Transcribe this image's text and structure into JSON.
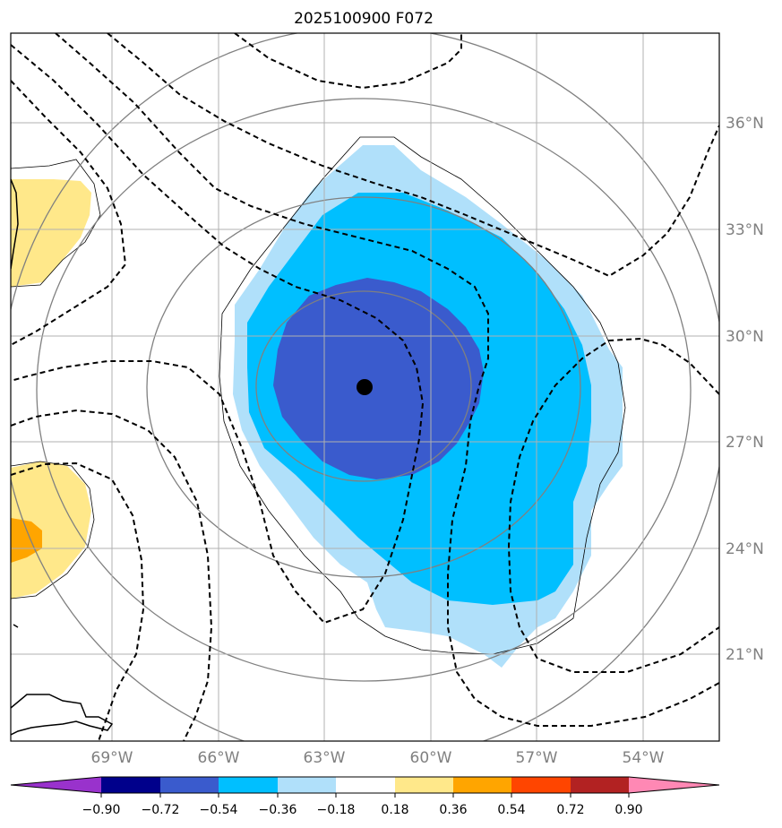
{
  "title": "2025100900 F072",
  "longitude_labels": [
    "69°W",
    "66°W",
    "63°W",
    "60°W",
    "57°W",
    "54°W"
  ],
  "latitude_labels": [
    "36°N",
    "33°N",
    "30°N",
    "27°N",
    "24°N",
    "21°N"
  ],
  "colorbar": {
    "labels": [
      "−0.90",
      "−0.72",
      "−0.54",
      "−0.36",
      "−0.18",
      "0.18",
      "0.36",
      "0.54",
      "0.72",
      "0.90"
    ],
    "colors": [
      "#9932cc",
      "#00008b",
      "#3a5bcd",
      "#00bfff",
      "#b0e0fa",
      "#ffffff",
      "#ffe88a",
      "#ffa500",
      "#ff4500",
      "#b22222",
      "#ff88b4"
    ]
  },
  "fill_colors": {
    "neg_strong": "#3a5bcd",
    "neg_medium": "#00bfff",
    "neg_light": "#b0e0fa",
    "pos_light": "#ffe88a",
    "pos_medium": "#ffa500"
  },
  "center_marker": "storm-center"
}
